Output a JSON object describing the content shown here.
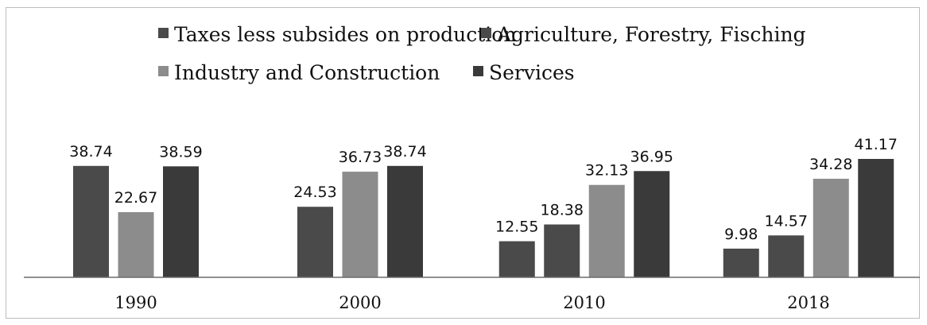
{
  "chart_data": {
    "type": "bar",
    "categories": [
      "1990",
      "2000",
      "2010",
      "2018"
    ],
    "series": [
      {
        "name": "Taxes less subsides on production",
        "values": [
          38.74,
          null,
          12.55,
          9.98
        ],
        "color": "#4a4a4a"
      },
      {
        "name": "Agriculture, Forestry, Fisching",
        "values": [
          null,
          24.53,
          18.38,
          14.57
        ],
        "color": "#4a4a4a"
      },
      {
        "name": "Industry and Construction",
        "values": [
          22.67,
          36.73,
          32.13,
          34.28
        ],
        "color": "#8c8c8c"
      },
      {
        "name": "Services",
        "values": [
          38.59,
          38.74,
          36.95,
          41.17
        ],
        "color": "#3a3a3a"
      }
    ],
    "title": "",
    "xlabel": "",
    "ylabel": "",
    "ylim": [
      0,
      45
    ],
    "grid": false,
    "legend_position": "top"
  }
}
